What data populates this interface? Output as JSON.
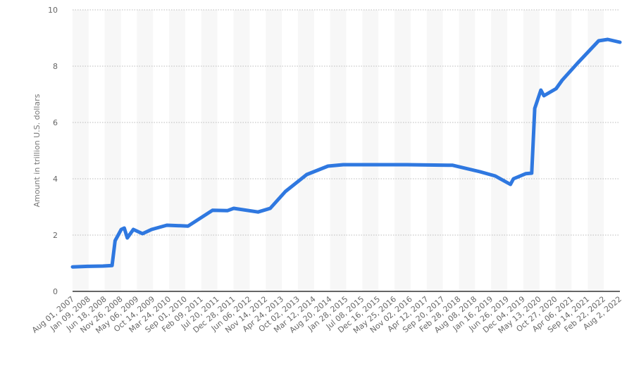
{
  "chart_data": {
    "type": "line",
    "title": "",
    "xlabel": "",
    "ylabel": "Amount in trillion U.S. dollars",
    "ylim": [
      0,
      10
    ],
    "yticks": [
      0,
      2,
      4,
      6,
      8,
      10
    ],
    "xlim": [
      "2007-08",
      "2022-08"
    ],
    "grid": true,
    "line_color": "#2f78e0",
    "x_tick_labels": [
      "Aug 01, 2007",
      "Jan 09, 2008",
      "Jun 18, 2008",
      "Nov 26, 2008",
      "May 06, 2009",
      "Oct 14, 2009",
      "Mar 24, 2010",
      "Sep 01, 2010",
      "Feb 09, 2011",
      "Jul 20, 2011",
      "Dec 28, 2011",
      "Jun 06, 2012",
      "Nov 14, 2012",
      "Apr 24, 2013",
      "Oct 02, 2013",
      "Mar 12, 2014",
      "Aug 20, 2014",
      "Jan 28, 2015",
      "Jul 08, 2015",
      "Dec 16, 2015",
      "May 25, 2016",
      "Nov 02, 2016",
      "Apr 12, 2017",
      "Sep 20, 2017",
      "Feb 28, 2018",
      "Aug 08, 2018",
      "Jan 16, 2019",
      "Jun 26, 2019",
      "Dec 04, 2019",
      "May 13, 2020",
      "Oct 27, 2020",
      "Apr 06, 2021",
      "Sep 14, 2021",
      "Feb 22, 2022",
      "Aug 2, 2022"
    ],
    "series": [
      {
        "x": [
          "2007-08",
          "2008-01",
          "2008-06",
          "2008-09",
          "2008-10",
          "2008-12",
          "2009-01",
          "2009-02",
          "2009-04",
          "2009-07",
          "2009-10",
          "2010-03",
          "2010-10",
          "2011-06",
          "2011-11",
          "2012-01",
          "2012-09",
          "2013-01",
          "2013-06",
          "2014-01",
          "2014-08",
          "2015-01",
          "2016-10",
          "2018-01",
          "2018-10",
          "2019-03",
          "2019-08",
          "2019-09",
          "2020-01",
          "2020-03",
          "2020-04",
          "2020-06",
          "2020-07",
          "2020-11",
          "2021-01",
          "2021-06",
          "2022-01",
          "2022-04",
          "2022-08"
        ],
        "y": [
          0.87,
          0.89,
          0.9,
          0.92,
          1.8,
          2.2,
          2.25,
          1.9,
          2.2,
          2.05,
          2.2,
          2.35,
          2.32,
          2.88,
          2.87,
          2.95,
          2.82,
          2.95,
          3.55,
          4.15,
          4.45,
          4.5,
          4.5,
          4.48,
          4.25,
          4.1,
          3.8,
          4.0,
          4.18,
          4.2,
          6.5,
          7.15,
          6.95,
          7.2,
          7.5,
          8.1,
          8.9,
          8.95,
          8.85
        ]
      }
    ]
  }
}
